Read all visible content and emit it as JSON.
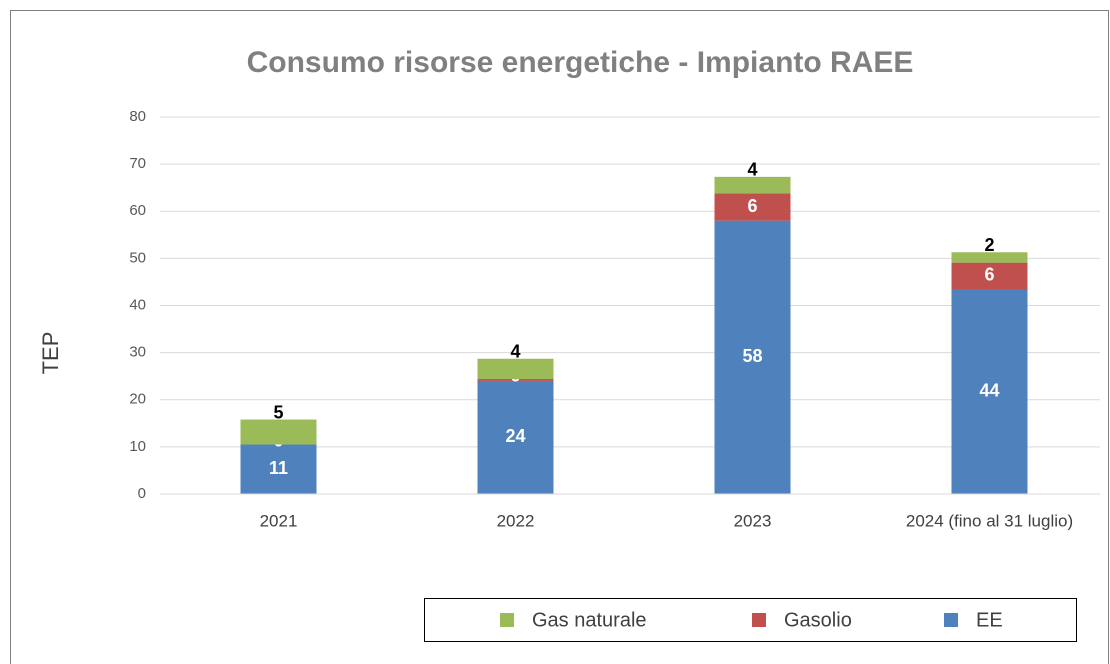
{
  "chart_data": {
    "type": "stacked_bar",
    "title": "Consumo risorse energetiche - Impianto RAEE",
    "y_label": "TEP",
    "categories": [
      "2021",
      "2022",
      "2023",
      "2024 (fino al 31 luglio)"
    ],
    "series": [
      {
        "name": "EE",
        "color": "#4f81bd",
        "values": [
          10.5,
          24,
          58,
          43.5
        ],
        "value_labels": [
          "11",
          "24",
          "58",
          "44"
        ]
      },
      {
        "name": "Gasolio",
        "color": "#c0504d",
        "values": [
          0,
          0.4,
          5.8,
          5.6
        ],
        "value_labels": [
          "0",
          "0",
          "6",
          "6"
        ]
      },
      {
        "name": "Gas naturale",
        "color": "#9bbb59",
        "values": [
          5.3,
          4.3,
          3.5,
          2.2
        ],
        "value_labels": [
          "5",
          "4",
          "4",
          "2"
        ]
      }
    ],
    "ylim": [
      0,
      80
    ],
    "yticks": [
      0,
      10,
      20,
      30,
      40,
      50,
      60,
      70,
      80
    ],
    "grid": true,
    "legend": "bottom"
  }
}
